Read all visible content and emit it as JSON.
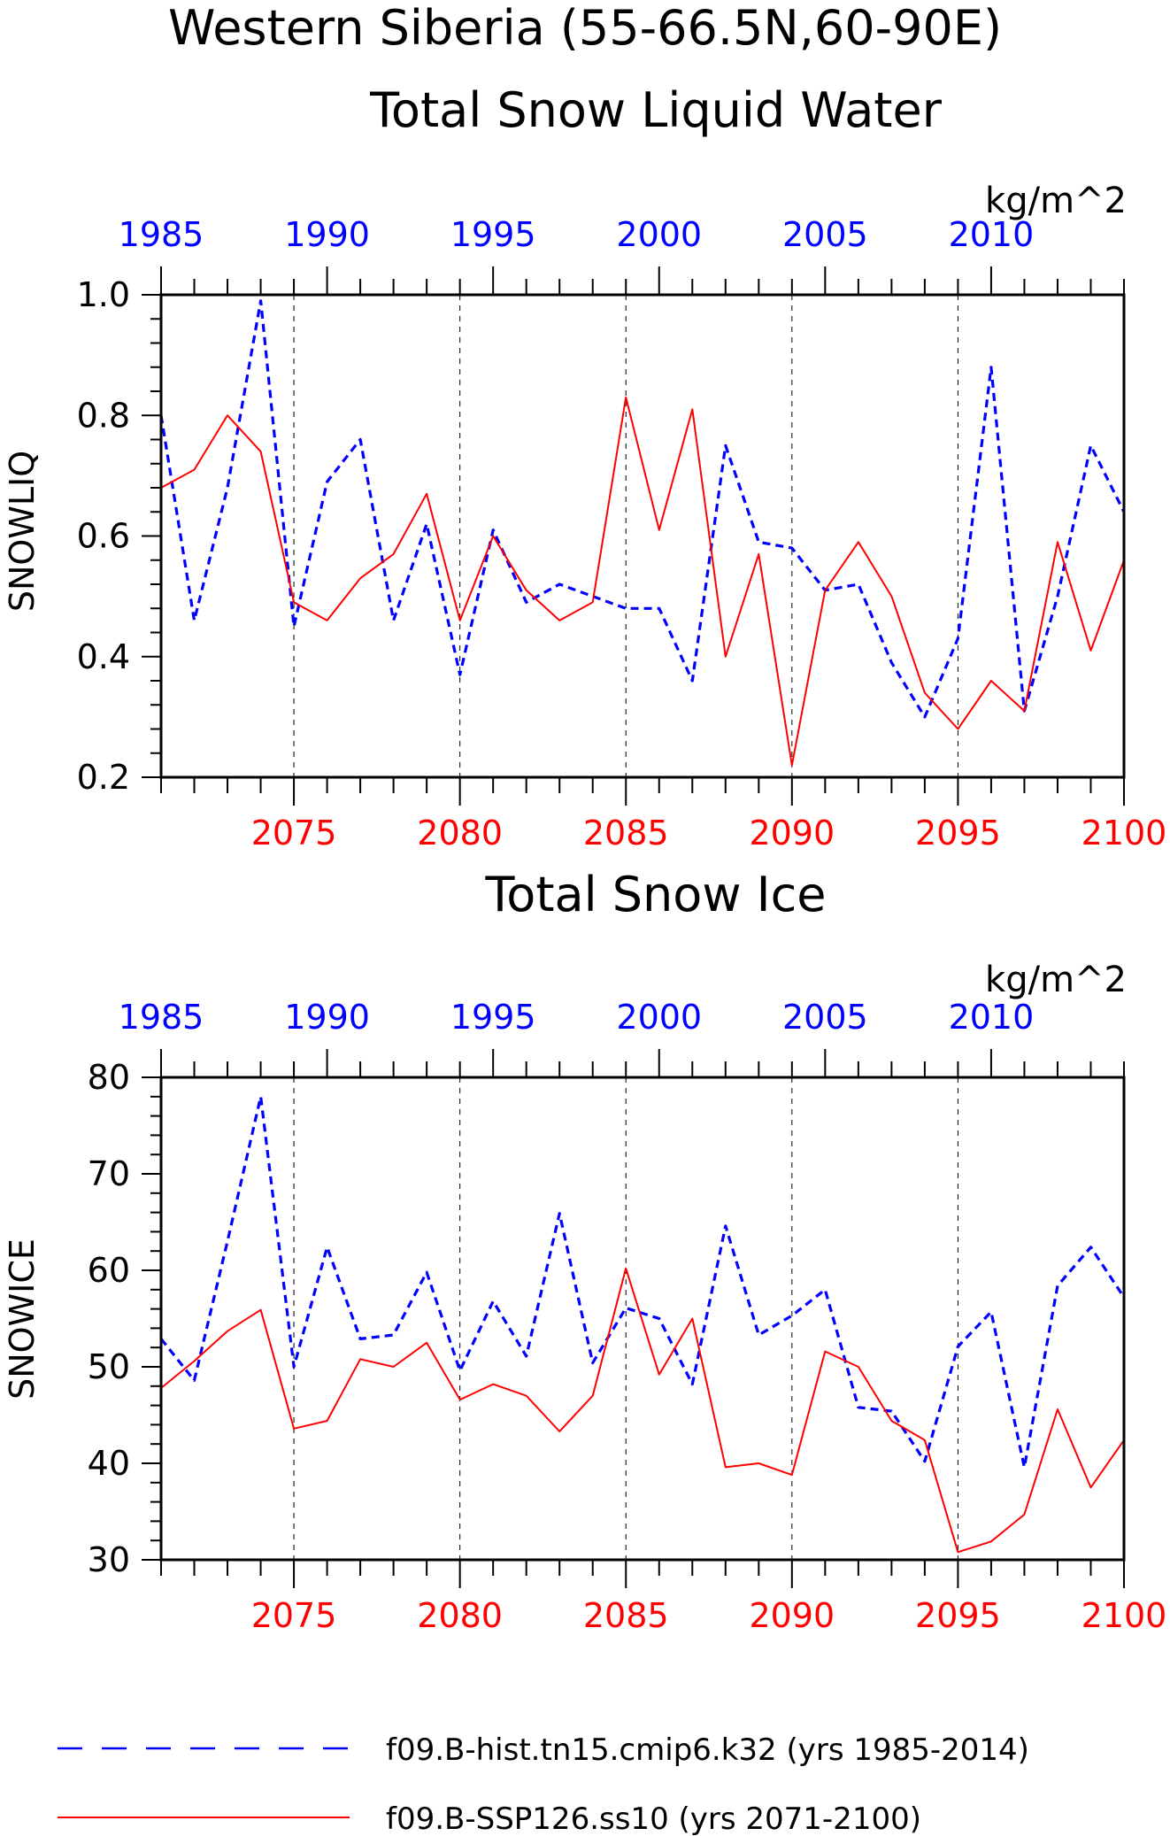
{
  "figure": {
    "title_line1": "Western Siberia (55-66.5N,60-90E)",
    "title_line2": "Total Snow Liquid Water"
  },
  "colors": {
    "hist": "#0000ff",
    "ssp": "#ff0000",
    "axis": "#000000",
    "grid": "#000000"
  },
  "legend": {
    "hist_label": "f09.B-hist.tn15.cmip6.k32 (yrs 1985-2014)",
    "ssp_label": "f09.B-SSP126.ss10 (yrs 2071-2100)"
  },
  "chart_data": [
    {
      "type": "line",
      "title": "",
      "units": "kg/m^2",
      "ylabel": "SNOWLIQ",
      "ylim": [
        0.2,
        1.0
      ],
      "yticks": [
        0.2,
        0.4,
        0.6,
        0.8,
        1.0
      ],
      "ytick_labels": [
        "0.2",
        "0.4",
        "0.6",
        "0.8",
        "1.0"
      ],
      "top_x": {
        "range": [
          1985,
          2014
        ],
        "ticks": [
          1985,
          1990,
          1995,
          2000,
          2005,
          2010
        ]
      },
      "bottom_x": {
        "range": [
          2071,
          2100
        ],
        "ticks": [
          2075,
          2080,
          2085,
          2090,
          2095,
          2100
        ]
      },
      "grid": "vertical dashed at labeled bottom-axis years",
      "series": [
        {
          "name": "f09.B-hist.tn15.cmip6.k32 (yrs 1985-2014)",
          "axis": "top",
          "style": "dashed",
          "x": [
            1985,
            1986,
            1987,
            1988,
            1989,
            1990,
            1991,
            1992,
            1993,
            1994,
            1995,
            1996,
            1997,
            1998,
            1999,
            2000,
            2001,
            2002,
            2003,
            2004,
            2005,
            2006,
            2007,
            2008,
            2009,
            2010,
            2011,
            2012,
            2013,
            2014
          ],
          "values": [
            0.8,
            0.46,
            0.68,
            0.99,
            0.45,
            0.69,
            0.76,
            0.46,
            0.62,
            0.37,
            0.61,
            0.49,
            0.52,
            0.5,
            0.48,
            0.48,
            0.36,
            0.75,
            0.59,
            0.58,
            0.51,
            0.52,
            0.39,
            0.3,
            0.43,
            0.88,
            0.31,
            0.5,
            0.75,
            0.64
          ]
        },
        {
          "name": "f09.B-SSP126.ss10 (yrs 2071-2100)",
          "axis": "bottom",
          "style": "solid",
          "x": [
            2071,
            2072,
            2073,
            2074,
            2075,
            2076,
            2077,
            2078,
            2079,
            2080,
            2081,
            2082,
            2083,
            2084,
            2085,
            2086,
            2087,
            2088,
            2089,
            2090,
            2091,
            2092,
            2093,
            2094,
            2095,
            2096,
            2097,
            2098,
            2099,
            2100
          ],
          "values": [
            0.68,
            0.71,
            0.8,
            0.74,
            0.49,
            0.46,
            0.53,
            0.57,
            0.67,
            0.46,
            0.6,
            0.51,
            0.46,
            0.49,
            0.83,
            0.61,
            0.81,
            0.4,
            0.57,
            0.22,
            0.51,
            0.59,
            0.5,
            0.34,
            0.28,
            0.36,
            0.31,
            0.59,
            0.41,
            0.56
          ]
        }
      ]
    },
    {
      "type": "line",
      "title": "Total Snow Ice",
      "units": "kg/m^2",
      "ylabel": "SNOWICE",
      "ylim": [
        30,
        80
      ],
      "yticks": [
        30,
        40,
        50,
        60,
        70,
        80
      ],
      "ytick_labels": [
        "30",
        "40",
        "50",
        "60",
        "70",
        "80"
      ],
      "top_x": {
        "range": [
          1985,
          2014
        ],
        "ticks": [
          1985,
          1990,
          1995,
          2000,
          2005,
          2010
        ]
      },
      "bottom_x": {
        "range": [
          2071,
          2100
        ],
        "ticks": [
          2075,
          2080,
          2085,
          2090,
          2095,
          2100
        ]
      },
      "grid": "vertical dashed at labeled bottom-axis years",
      "series": [
        {
          "name": "f09.B-hist.tn15.cmip6.k32 (yrs 1985-2014)",
          "axis": "top",
          "style": "dashed",
          "x": [
            1985,
            1986,
            1987,
            1988,
            1989,
            1990,
            1991,
            1992,
            1993,
            1994,
            1995,
            1996,
            1997,
            1998,
            1999,
            2000,
            2001,
            2002,
            2003,
            2004,
            2005,
            2006,
            2007,
            2008,
            2009,
            2010,
            2011,
            2012,
            2013,
            2014
          ],
          "values": [
            52.9,
            48.6,
            63.0,
            78.0,
            50.0,
            62.4,
            52.9,
            53.3,
            59.8,
            49.6,
            56.8,
            51.1,
            65.9,
            50.4,
            56.1,
            55.0,
            48.2,
            64.6,
            53.3,
            55.3,
            58.0,
            45.8,
            45.4,
            40.2,
            52.1,
            55.7,
            39.6,
            58.4,
            62.4,
            57.2
          ]
        },
        {
          "name": "f09.B-SSP126.ss10 (yrs 2071-2100)",
          "axis": "bottom",
          "style": "solid",
          "x": [
            2071,
            2072,
            2073,
            2074,
            2075,
            2076,
            2077,
            2078,
            2079,
            2080,
            2081,
            2082,
            2083,
            2084,
            2085,
            2086,
            2087,
            2088,
            2089,
            2090,
            2091,
            2092,
            2093,
            2094,
            2095,
            2096,
            2097,
            2098,
            2099,
            2100
          ],
          "values": [
            47.8,
            50.6,
            53.7,
            55.9,
            43.6,
            44.4,
            50.8,
            50.0,
            52.5,
            46.6,
            48.2,
            47.0,
            43.3,
            47.0,
            60.2,
            49.2,
            55.0,
            39.6,
            40.0,
            38.8,
            51.6,
            50.0,
            44.4,
            42.4,
            30.8,
            31.9,
            34.7,
            45.6,
            37.5,
            42.4
          ]
        }
      ]
    }
  ]
}
